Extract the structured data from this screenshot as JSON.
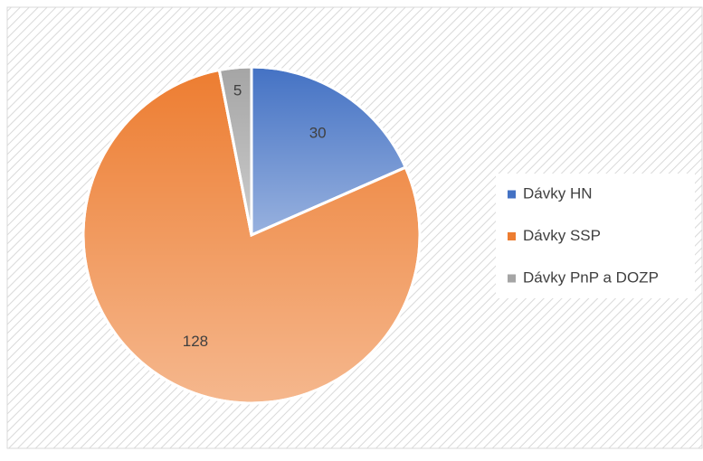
{
  "chart_data": {
    "type": "pie",
    "categories": [
      "Dávky HN",
      "Dávky SSP",
      "Dávky PnP a DOZP"
    ],
    "values": [
      30,
      128,
      5
    ],
    "colors": [
      "#4472c4",
      "#ed7d31",
      "#a5a5a5"
    ],
    "legend": "right"
  }
}
